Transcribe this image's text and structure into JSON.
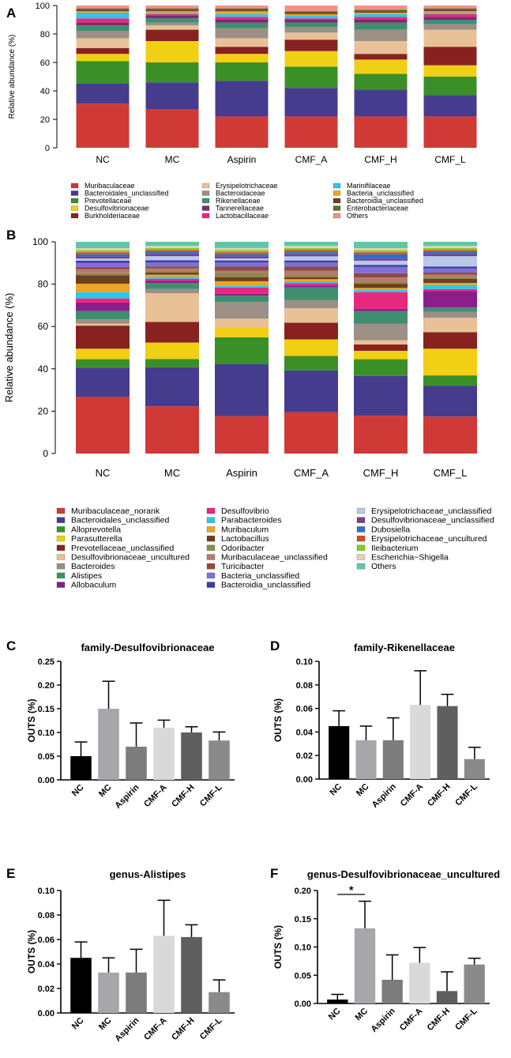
{
  "chart_data": [
    {
      "id": "A",
      "panel_label": "A",
      "type": "bar",
      "stacked": true,
      "ylabel": "Relative abundance (%)",
      "ylim": [
        0,
        100
      ],
      "yticks": [
        0,
        20,
        40,
        60,
        80,
        100
      ],
      "categories": [
        "NC",
        "MC",
        "Aspirin",
        "CMF_A",
        "CMF_H",
        "CMF_L"
      ],
      "series": [
        {
          "name": "Muribaculaceae",
          "color": "#cf3a36",
          "values": [
            31,
            27,
            22,
            22,
            22,
            22
          ]
        },
        {
          "name": "Bacteroidales_unclassified",
          "color": "#463c8e",
          "values": [
            14,
            19,
            25,
            20,
            19,
            15
          ]
        },
        {
          "name": "Prevotellaceae",
          "color": "#3a8f26",
          "values": [
            16,
            14,
            13,
            15,
            11,
            13
          ]
        },
        {
          "name": "Desulfovibrionaceae",
          "color": "#f1cf14",
          "values": [
            5,
            15,
            6,
            11,
            10,
            8
          ]
        },
        {
          "name": "Burkholderiaceae",
          "color": "#872221",
          "values": [
            4,
            8,
            5,
            8,
            4,
            13
          ]
        },
        {
          "name": "Erysipelotrichaceae",
          "color": "#e8c196",
          "values": [
            7,
            3,
            6,
            5,
            9,
            12
          ]
        },
        {
          "name": "Bacteroidaceae",
          "color": "#9c8f86",
          "values": [
            5,
            2,
            7,
            4,
            8,
            4
          ]
        },
        {
          "name": "Rikenellaceae",
          "color": "#3f8e70",
          "values": [
            4,
            3,
            4,
            3,
            5,
            3
          ]
        },
        {
          "name": "Tannerellaceae",
          "color": "#7a2a72",
          "values": [
            2,
            2,
            2,
            2,
            2,
            2
          ]
        },
        {
          "name": "Lactobacillaceae",
          "color": "#e8287e",
          "values": [
            3,
            1,
            2,
            1,
            2,
            2
          ]
        },
        {
          "name": "Marinifilaceae",
          "color": "#2ec7ea",
          "values": [
            4,
            1,
            2,
            2,
            2,
            1
          ]
        },
        {
          "name": "Bacteria_unclassified",
          "color": "#f0a51c",
          "values": [
            1,
            1,
            2,
            1,
            1,
            1
          ]
        },
        {
          "name": "Bacteroidia_unclassified",
          "color": "#6e3f1f",
          "values": [
            1,
            1,
            1,
            1,
            1,
            1
          ]
        },
        {
          "name": "Enterobacteriaceae",
          "color": "#5f6b2c",
          "values": [
            1,
            1,
            1,
            1,
            1,
            1
          ]
        },
        {
          "name": "Others",
          "color": "#f29088",
          "values": [
            2,
            2,
            2,
            4,
            3,
            2
          ]
        }
      ],
      "legend_columns": [
        [
          "Muribaculaceae",
          "Bacteroidales_unclassified",
          "Prevotellaceae",
          "Desulfovibrionaceae",
          "Burkholderiaceae"
        ],
        [
          "Erysipelotrichaceae",
          "Bacteroidaceae",
          "Rikenellaceae",
          "Tannerellaceae",
          "Lactobacillaceae"
        ],
        [
          "Marinifilaceae",
          "Bacteria_unclassified",
          "Bacteroidia_unclassified",
          "Enterobacteriaceae",
          "Others"
        ]
      ]
    },
    {
      "id": "B",
      "panel_label": "B",
      "type": "bar",
      "stacked": true,
      "ylabel": "Relative abundance (%)",
      "ylim": [
        0,
        100
      ],
      "yticks": [
        0,
        20,
        40,
        60,
        80,
        100
      ],
      "categories": [
        "NC",
        "MC",
        "Aspirin",
        "CMF_A",
        "CMF_H",
        "CMF_L"
      ],
      "series": [
        {
          "name": "Muribaculaceae_norank",
          "color": "#cf3a36",
          "values": [
            27,
            23,
            18,
            20,
            18,
            18
          ]
        },
        {
          "name": "Bacteroidales_unclassified",
          "color": "#463c8e",
          "values": [
            14,
            19,
            25,
            20,
            19,
            15
          ]
        },
        {
          "name": "Alloprevotella",
          "color": "#3a8f26",
          "values": [
            4,
            4,
            13,
            7,
            8,
            5
          ]
        },
        {
          "name": "Parasutterella",
          "color": "#f1cf14",
          "values": [
            5,
            8,
            5,
            8,
            4,
            13
          ]
        },
        {
          "name": "Prevotellaceae_unclassified",
          "color": "#872221",
          "values": [
            11,
            10,
            0,
            8,
            3,
            8
          ]
        },
        {
          "name": "Desulfovibrionaceae_uncultured",
          "color": "#e8c196",
          "values": [
            1,
            14,
            4,
            7,
            2,
            7
          ]
        },
        {
          "name": "Bacteroides",
          "color": "#9c8f86",
          "values": [
            2,
            2,
            8,
            4,
            8,
            3
          ]
        },
        {
          "name": "Alistipes",
          "color": "#3f8e70",
          "values": [
            4,
            3,
            3,
            6,
            6,
            2
          ]
        },
        {
          "name": "Allobaculum",
          "color": "#8a1f8c",
          "values": [
            4,
            1,
            1,
            1,
            1,
            8
          ]
        },
        {
          "name": "Desulfovibrio",
          "color": "#e8287e",
          "values": [
            2,
            1,
            3,
            1,
            8,
            1
          ]
        },
        {
          "name": "Parabacteroides",
          "color": "#2ec7ea",
          "values": [
            3,
            1,
            1,
            1,
            1,
            2
          ]
        },
        {
          "name": "Muribaculum",
          "color": "#f0a51c",
          "values": [
            4,
            1,
            2,
            1,
            1,
            1
          ]
        },
        {
          "name": "Lactobacillus",
          "color": "#6e3f1f",
          "values": [
            4,
            1,
            2,
            1,
            2,
            2
          ]
        },
        {
          "name": "Odoribacter",
          "color": "#8c8a4e",
          "values": [
            1,
            1,
            2,
            1,
            1,
            1
          ]
        },
        {
          "name": "Muribaculaceae_unclassified",
          "color": "#b77a6e",
          "values": [
            2,
            1,
            1,
            2,
            2,
            1
          ]
        },
        {
          "name": "Turicibacter",
          "color": "#8e4a44",
          "values": [
            1,
            1,
            2,
            2,
            2,
            1
          ]
        },
        {
          "name": "Bacteria_unclassified",
          "color": "#7f6fd6",
          "values": [
            2,
            2,
            2,
            2,
            3,
            2
          ]
        },
        {
          "name": "Bacteroidia_unclassified",
          "color": "#3a3fa0",
          "values": [
            1,
            1,
            1,
            1,
            1,
            1
          ]
        },
        {
          "name": "Erysipelotrichaceae_unclassified",
          "color": "#b9c8e8",
          "values": [
            1,
            2,
            1,
            2,
            2,
            5
          ]
        },
        {
          "name": "Desulfovibrionaceae_unclassified",
          "color": "#7a3f8e",
          "values": [
            1,
            1,
            1,
            1,
            1,
            1
          ]
        },
        {
          "name": "Dubosiella",
          "color": "#2a6fce",
          "values": [
            1,
            1,
            1,
            1,
            2,
            1
          ]
        },
        {
          "name": "Erysipelotrichaceae_uncultured",
          "color": "#d84a2a",
          "values": [
            1,
            1,
            1,
            1,
            1,
            1
          ]
        },
        {
          "name": "Ileibacterium",
          "color": "#7fd122",
          "values": [
            1,
            1,
            1,
            1,
            1,
            1
          ]
        },
        {
          "name": "Escherichia-Shigella",
          "color": "#e2cfb6",
          "values": [
            1,
            1,
            1,
            1,
            1,
            1
          ]
        },
        {
          "name": "Others",
          "color": "#5cc8a8",
          "values": [
            3,
            2,
            3,
            2,
            3,
            2
          ]
        }
      ],
      "legend_columns": [
        [
          "Muribaculaceae_norank",
          "Bacteroidales_unclassified",
          "Alloprevotella",
          "Parasutterella",
          "Prevotellaceae_unclassified",
          "Desulfovibrionaceae_uncultured",
          "Bacteroides",
          "Alistipes",
          "Allobaculum"
        ],
        [
          "Desulfovibrio",
          "Parabacteroides",
          "Muribaculum",
          "Lactobacillus",
          "Odoribacter",
          "Muribaculaceae_unclassified",
          "Turicibacter",
          "Bacteria_unclassified",
          "Bacteroidia_unclassified"
        ],
        [
          "Erysipelotrichaceae_unclassified",
          "Desulfovibrionaceae_unclassified",
          "Dubosiella",
          "Erysipelotrichaceae_uncultured",
          "Ileibacterium",
          "Escherichia−Shigella",
          "Others"
        ]
      ]
    },
    {
      "id": "C",
      "panel_label": "C",
      "type": "bar",
      "title": "family-Desulfovibrionaceae",
      "ylabel": "OUTS (%)",
      "ylim": [
        0,
        0.25
      ],
      "yticks": [
        "0.00",
        "0.05",
        "0.10",
        "0.15",
        "0.20",
        "0.25"
      ],
      "categories": [
        "NC",
        "MC",
        "Aspirin",
        "CMF-A",
        "CMF-H",
        "CMF-L"
      ],
      "values": [
        0.05,
        0.15,
        0.07,
        0.11,
        0.1,
        0.083
      ],
      "errors": [
        0.03,
        0.058,
        0.05,
        0.016,
        0.012,
        0.018
      ],
      "bar_colors": [
        "#000000",
        "#a7a7ab",
        "#7c7c7c",
        "#d9d9d9",
        "#5f5f5f",
        "#8a8a8a"
      ]
    },
    {
      "id": "D",
      "panel_label": "D",
      "type": "bar",
      "title": "family-Rikenellaceae",
      "ylabel": "OUTS (%)",
      "ylim": [
        0,
        0.1
      ],
      "yticks": [
        "0.00",
        "0.02",
        "0.04",
        "0.06",
        "0.08",
        "0.10"
      ],
      "categories": [
        "NC",
        "MC",
        "Aspirin",
        "CMF-A",
        "CMF-H",
        "CMF-L"
      ],
      "values": [
        0.045,
        0.033,
        0.033,
        0.063,
        0.062,
        0.017
      ],
      "errors": [
        0.013,
        0.012,
        0.019,
        0.029,
        0.01,
        0.01
      ],
      "bar_colors": [
        "#000000",
        "#a7a7ab",
        "#7c7c7c",
        "#d9d9d9",
        "#5f5f5f",
        "#8a8a8a"
      ]
    },
    {
      "id": "E",
      "panel_label": "E",
      "type": "bar",
      "title": "genus-Alistipes",
      "ylabel": "OUTS (%)",
      "ylim": [
        0,
        0.1
      ],
      "yticks": [
        "0.00",
        "0.02",
        "0.04",
        "0.06",
        "0.08",
        "0.10"
      ],
      "categories": [
        "NC",
        "MC",
        "Aspirin",
        "CMF-A",
        "CMF-H",
        "CMF-L"
      ],
      "values": [
        0.045,
        0.033,
        0.033,
        0.063,
        0.062,
        0.017
      ],
      "errors": [
        0.013,
        0.012,
        0.019,
        0.029,
        0.01,
        0.01
      ],
      "bar_colors": [
        "#000000",
        "#a7a7ab",
        "#7c7c7c",
        "#d9d9d9",
        "#5f5f5f",
        "#8a8a8a"
      ]
    },
    {
      "id": "F",
      "panel_label": "F",
      "type": "bar",
      "title": "genus-Desulfovibrionaceae_uncultured",
      "ylabel": "OUTS (%)",
      "ylim": [
        0,
        0.2
      ],
      "yticks": [
        "0.00",
        "0.05",
        "0.10",
        "0.15",
        "0.20"
      ],
      "categories": [
        "NC",
        "MC",
        "Aspirin",
        "CMF-A",
        "CMF-H",
        "CMF-L"
      ],
      "values": [
        0.007,
        0.133,
        0.042,
        0.072,
        0.022,
        0.069
      ],
      "errors": [
        0.009,
        0.048,
        0.044,
        0.027,
        0.034,
        0.011
      ],
      "bar_colors": [
        "#000000",
        "#a7a7ab",
        "#7c7c7c",
        "#d9d9d9",
        "#5f5f5f",
        "#8a8a8a"
      ],
      "significance": {
        "from": "NC",
        "to": "MC",
        "label": "*"
      }
    }
  ]
}
